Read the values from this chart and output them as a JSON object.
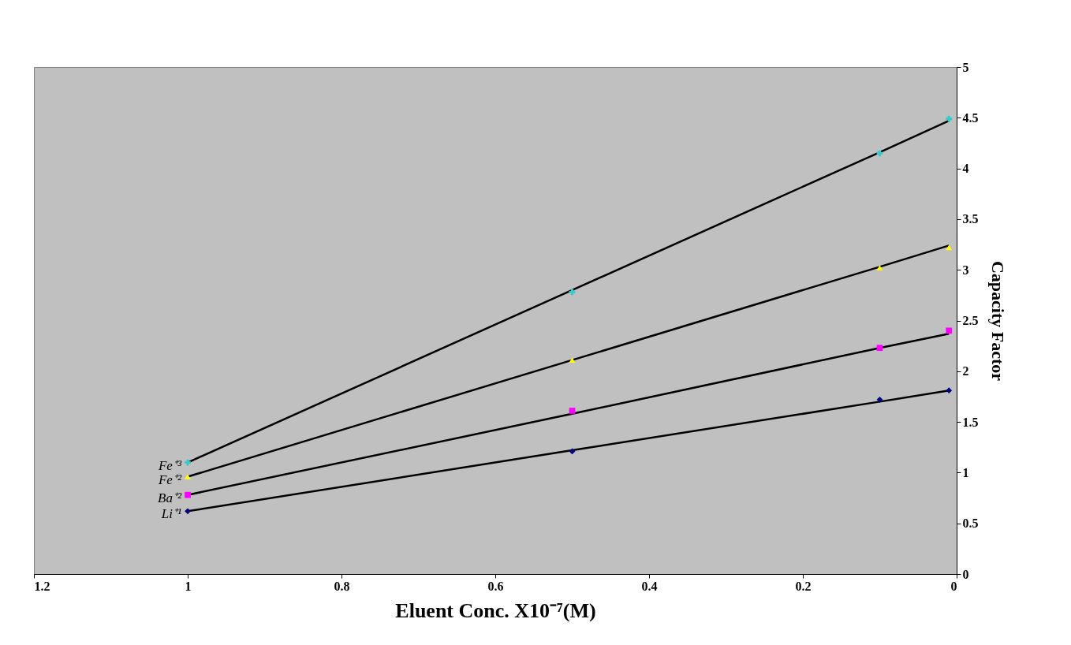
{
  "chart_data": {
    "type": "scatter",
    "xlabel": "Eluent Conc. X10⁻⁷(M)",
    "ylabel": "Capacity Factor",
    "xlim": [
      1.2,
      0
    ],
    "xticks": [
      1.2,
      1,
      0.8,
      0.6,
      0.4,
      0.2,
      0
    ],
    "ylim": [
      0,
      5
    ],
    "yticks": [
      0,
      0.5,
      1,
      1.5,
      2,
      2.5,
      3,
      3.5,
      4,
      4.5,
      5
    ],
    "grid": false,
    "x": [
      1,
      0.5,
      0.1,
      0.01
    ],
    "series": [
      {
        "name": "Fe⁺³",
        "color": "#33cccc",
        "marker": "cross",
        "values": [
          1.1,
          2.78,
          4.15,
          4.49
        ]
      },
      {
        "name": "Fe⁺²",
        "color": "#ffff00",
        "marker": "triangle",
        "values": [
          0.96,
          2.11,
          3.02,
          3.22
        ]
      },
      {
        "name": "Ba⁺²",
        "color": "#ff00ff",
        "marker": "square",
        "values": [
          0.78,
          1.61,
          2.23,
          2.4
        ]
      },
      {
        "name": "Li⁺¹",
        "color": "#000080",
        "marker": "diamond",
        "values": [
          0.62,
          1.21,
          1.72,
          1.81
        ]
      },
      {
        "type": "line",
        "color": "#000000",
        "values": [
          1.1,
          2.8,
          4.16,
          4.47
        ],
        "line_style": "solid"
      },
      {
        "type": "line",
        "color": "#000000",
        "values": [
          0.96,
          2.11,
          3.03,
          3.24
        ],
        "line_style": "solid"
      },
      {
        "type": "line",
        "color": "#000000",
        "values": [
          0.78,
          1.58,
          2.23,
          2.37
        ],
        "line_style": "solid"
      },
      {
        "type": "line",
        "color": "#000000",
        "values": [
          0.62,
          1.22,
          1.7,
          1.81
        ],
        "line_style": "solid"
      }
    ]
  }
}
